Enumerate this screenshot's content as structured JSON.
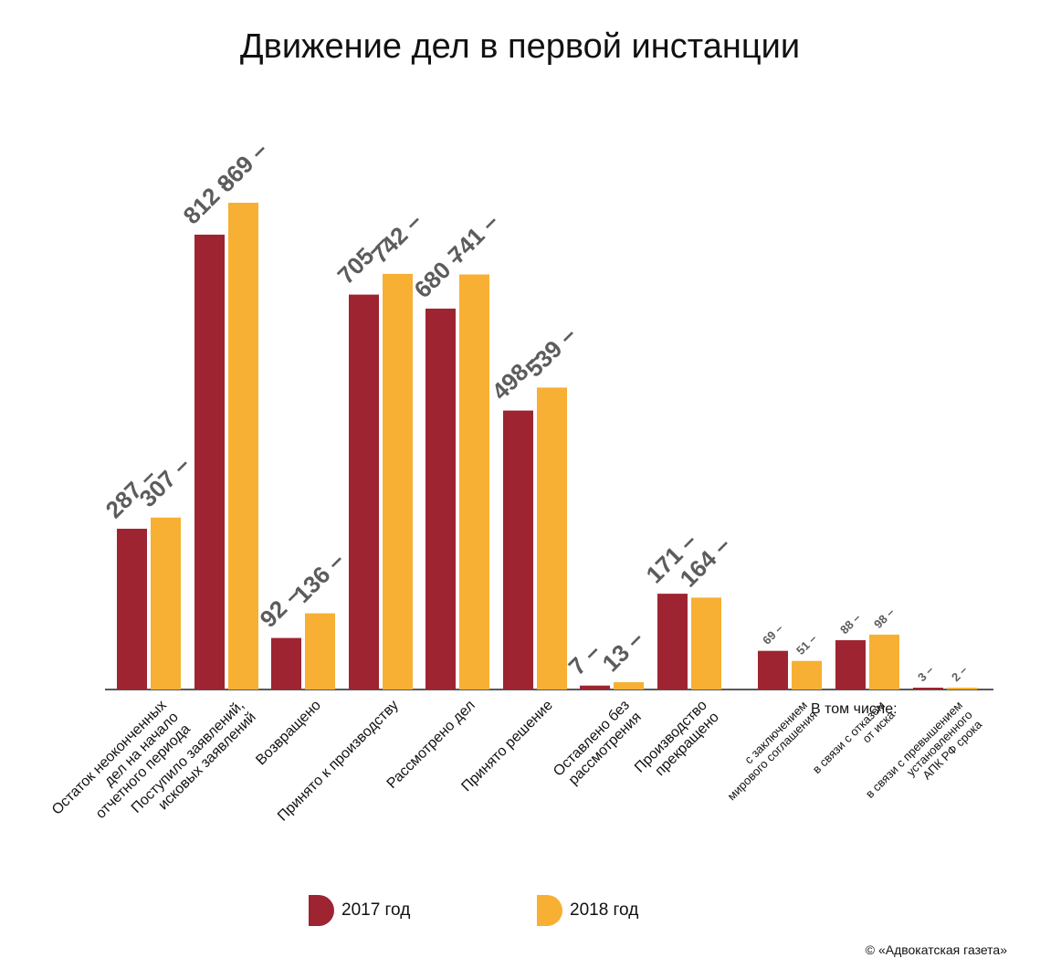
{
  "chart_data": {
    "type": "bar",
    "title": "Движение дел в первой инстанции",
    "categories": [
      "Остаток неоконченных дел на начало отчетного периода",
      "Поступило заявлений, исковых заявлений",
      "Возвращено",
      "Принято к производству",
      "Рассмотрено дел",
      "Принято решение",
      "Оставлено без рассмотрения",
      "Производство прекращено",
      "с заключением мирового соглашения",
      "в связи с отказом от иска",
      "в связи с превышением установленного АПК РФ срока"
    ],
    "category_lines": [
      [
        "Остаток неоконченных",
        "дел на начало",
        "отчетного периода"
      ],
      [
        "Поступило заявлений,",
        "исковых заявлений"
      ],
      [
        "Возвращено"
      ],
      [
        "Принято к производству"
      ],
      [
        "Рассмотрено дел"
      ],
      [
        "Принято решение"
      ],
      [
        "Оставлено без",
        "рассмотрения"
      ],
      [
        "Производство",
        "прекращено"
      ],
      [
        "с заключением",
        "мирового соглашения"
      ],
      [
        "в связи с отказом",
        "от иска"
      ],
      [
        "в связи с превышением",
        "установленного",
        "АПК РФ срока"
      ]
    ],
    "series": [
      {
        "name": "2017 год",
        "color": "#9e2431",
        "values": [
          287,
          812,
          92,
          705,
          680,
          498,
          7,
          171,
          69,
          88,
          3
        ]
      },
      {
        "name": "2018 год",
        "color": "#f7b033",
        "values": [
          307,
          869,
          136,
          742,
          741,
          539,
          13,
          164,
          51,
          98,
          2
        ]
      }
    ],
    "value_labels": [
      [
        "287",
        "307"
      ],
      [
        "812",
        "869"
      ],
      [
        "92",
        "136"
      ],
      [
        "705",
        "742"
      ],
      [
        "680",
        "741"
      ],
      [
        "498",
        "539"
      ],
      [
        "7",
        "13"
      ],
      [
        "171",
        "164"
      ],
      [
        "69",
        "51"
      ],
      [
        "88",
        "98"
      ],
      [
        "3",
        "2"
      ]
    ],
    "subgroup_heading": "В том числе:",
    "subgroup_start_index": 8,
    "ylim": [
      0,
      869
    ],
    "grid": false,
    "legend_position": "bottom-center"
  },
  "copyright": "© «Адвокатская газета»"
}
